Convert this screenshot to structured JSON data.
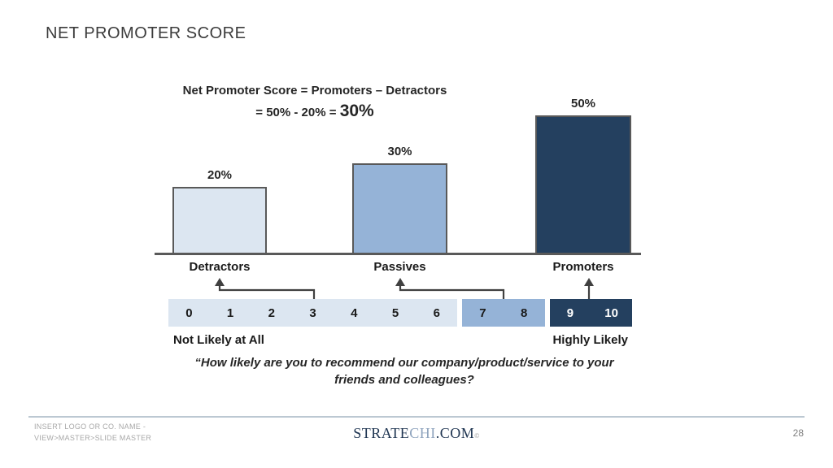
{
  "slide": {
    "title": "NET PROMOTER SCORE"
  },
  "formula": {
    "line1": "Net Promoter Score = Promoters – Detractors",
    "line2_prefix": "= 50% - 20% = ",
    "line2_result": "30%"
  },
  "chart_data": {
    "type": "bar",
    "title": "Net Promoter Score",
    "categories": [
      "Detractors",
      "Passives",
      "Promoters"
    ],
    "values": [
      20,
      30,
      50
    ],
    "value_labels": [
      "20%",
      "30%",
      "50%"
    ],
    "bar_colors": [
      "#dce6f1",
      "#95b3d7",
      "#24405f"
    ],
    "xlabel": "",
    "ylabel": "",
    "ylim": [
      0,
      60
    ],
    "grid": false,
    "legend": false
  },
  "scale": {
    "segments": [
      {
        "name": "detractors-range",
        "color": "#dce6f1",
        "text_color": "#1a1a1a",
        "cells": [
          "0",
          "1",
          "2",
          "3",
          "4",
          "5",
          "6"
        ]
      },
      {
        "name": "passives-range",
        "color": "#95b3d7",
        "text_color": "#1a1a1a",
        "cells": [
          "7",
          "8"
        ]
      },
      {
        "name": "promoters-range",
        "color": "#24405f",
        "text_color": "#ffffff",
        "cells": [
          "9",
          "10"
        ]
      }
    ],
    "left_label": "Not Likely at All",
    "right_label": "Highly Likely"
  },
  "quote": {
    "line1": "“How likely are you to recommend our company/product/service to your",
    "line2": "friends and colleagues?"
  },
  "footer": {
    "left_line1": "INSERT LOGO OR CO. NAME -",
    "left_line2": "VIEW>MASTER>SLIDE MASTER",
    "logo_part1": "STRATE",
    "logo_part2": "CHI",
    "logo_part3": ".COM",
    "logo_reg": "©",
    "page_number": "28"
  },
  "colors": {
    "bar_border": "#595959",
    "axis": "#595959",
    "connector": "#404040",
    "light_blue": "#dce6f1",
    "mid_blue": "#95b3d7",
    "dark_navy": "#24405f"
  }
}
